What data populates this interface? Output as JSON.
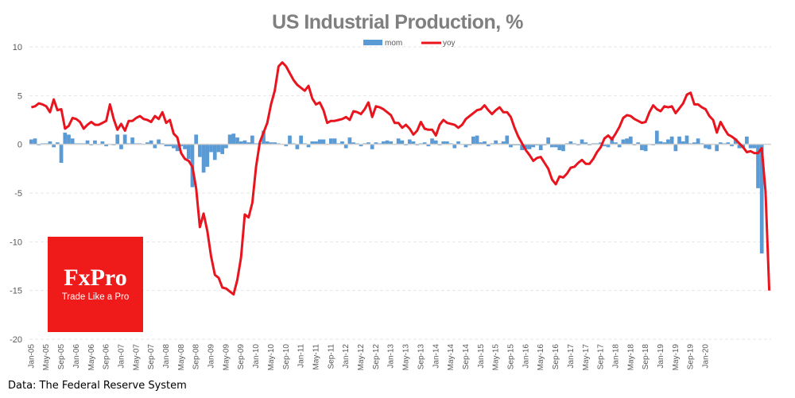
{
  "source_note": "Data: The Federal Reserve System",
  "logo": {
    "brand": "FxPro",
    "tagline": "Trade Like a Pro",
    "color": "#ef1a1a"
  },
  "colors": {
    "mom": "#5b9bd5",
    "yoy": "#e8141e",
    "grid": "#e6e6e6",
    "zero": "#d0d0d0",
    "axis_text": "#595959",
    "title": "#7f7f7f"
  },
  "chart_data": {
    "type": "bar+line",
    "title": "US Industrial Production, %",
    "xlabel": "",
    "ylabel": "",
    "ylim": [
      -20,
      10
    ],
    "yticks": [
      10,
      5,
      0,
      -5,
      -10,
      -15,
      -20
    ],
    "grid": true,
    "legend": {
      "position": "top-center",
      "entries": [
        "mom",
        "yoy"
      ]
    },
    "x_start": "Jan-05",
    "x_end": "Apr-20",
    "xtick_labels": [
      "Jan-05",
      "May-05",
      "Sep-05",
      "Jan-06",
      "May-06",
      "Sep-06",
      "Jan-07",
      "May-07",
      "Sep-07",
      "Jan-08",
      "May-08",
      "Sep-08",
      "Jan-09",
      "May-09",
      "Sep-09",
      "Jan-10",
      "May-10",
      "Sep-10",
      "Jan-11",
      "May-11",
      "Sep-11",
      "Jan-12",
      "May-12",
      "Sep-12",
      "Jan-13",
      "May-13",
      "Sep-13",
      "Jan-14",
      "May-14",
      "Sep-14",
      "Jan-15",
      "May-15",
      "Sep-15",
      "Jan-16",
      "May-16",
      "Sep-16",
      "Jan-17",
      "May-17",
      "Sep-17",
      "Jan-18",
      "May-18",
      "Sep-18",
      "Jan-19",
      "May-19",
      "Sep-19",
      "Jan-20"
    ],
    "series": [
      {
        "name": "mom",
        "type": "bar",
        "values": [
          0.5,
          0.6,
          -0.1,
          0.1,
          0.1,
          0.3,
          -0.3,
          0.2,
          -1.9,
          1.2,
          1.0,
          0.6,
          0.1,
          0.1,
          0.1,
          0.4,
          -0.1,
          0.4,
          0.0,
          0.3,
          -0.2,
          0.0,
          -0.1,
          1.0,
          -0.5,
          1.0,
          0.1,
          0.7,
          0.1,
          0.1,
          0.0,
          0.2,
          0.4,
          -0.4,
          0.5,
          0.1,
          -0.2,
          -0.2,
          -0.4,
          -0.7,
          -0.2,
          -0.5,
          -1.5,
          -4.4,
          1.0,
          -1.3,
          -2.9,
          -2.3,
          -0.8,
          -1.6,
          -0.8,
          -1.0,
          -0.4,
          1.0,
          1.1,
          0.7,
          0.3,
          0.4,
          0.2,
          0.9,
          0.1,
          0.1,
          1.4,
          0.3,
          0.2,
          0.2,
          0.1,
          0.0,
          -0.2,
          0.9,
          0.1,
          -0.5,
          0.9,
          0.1,
          -0.3,
          0.3,
          0.3,
          0.5,
          0.5,
          0.0,
          0.6,
          0.6,
          0.1,
          0.3,
          -0.4,
          0.7,
          0.2,
          0.1,
          -0.2,
          0.1,
          0.2,
          -0.5,
          0.2,
          0.1,
          0.3,
          0.4,
          0.3,
          0.0,
          0.6,
          0.4,
          -0.1,
          0.5,
          0.3,
          -0.1,
          0.1,
          0.2,
          -0.2,
          0.6,
          0.4,
          -0.1,
          0.3,
          0.3,
          0.1,
          -0.4,
          0.3,
          0.0,
          -0.3,
          -0.1,
          0.8,
          0.9,
          0.2,
          0.3,
          -0.2,
          0.1,
          0.4,
          0.1,
          0.3,
          0.9,
          -0.3,
          -0.1,
          -0.1,
          -0.6,
          -0.5,
          -0.5,
          -0.3,
          -0.1,
          -0.6,
          -0.1,
          0.7,
          -0.3,
          -0.3,
          -0.6,
          -0.7,
          0.1,
          0.3,
          0.1,
          -0.1,
          0.5,
          0.2,
          -0.1,
          0.1,
          0.1,
          0.2,
          -0.2,
          -0.3,
          0.8,
          0.2,
          -0.3,
          0.5,
          0.6,
          0.8,
          -0.1,
          0.2,
          -0.6,
          -0.7,
          0.0,
          -0.1,
          1.4,
          0.3,
          0.2,
          0.5,
          0.8,
          -0.7,
          0.8,
          0.3,
          0.9,
          0.1,
          0.2,
          0.6,
          0.1,
          -0.4,
          -0.5,
          0.0,
          -0.7,
          0.2,
          0.1,
          0.2,
          -0.2,
          0.6,
          -0.4,
          -0.4,
          0.8,
          -0.4,
          -0.4,
          -4.5,
          -11.2
        ]
      },
      {
        "name": "yoy",
        "type": "line",
        "values": [
          3.8,
          3.9,
          4.2,
          4.1,
          3.9,
          3.3,
          4.6,
          3.5,
          3.6,
          1.6,
          1.9,
          2.7,
          2.6,
          2.3,
          1.6,
          2.0,
          2.3,
          2.0,
          2.0,
          2.2,
          2.4,
          4.1,
          2.6,
          1.5,
          2.1,
          1.4,
          2.4,
          2.4,
          2.7,
          2.9,
          2.6,
          2.5,
          2.3,
          2.9,
          2.6,
          3.3,
          2.2,
          2.5,
          1.1,
          0.7,
          -0.9,
          -1.5,
          -1.7,
          -2.3,
          -4.5,
          -8.5,
          -7.1,
          -8.9,
          -11.5,
          -13.4,
          -13.7,
          -14.7,
          -14.8,
          -15.1,
          -15.4,
          -13.9,
          -11.6,
          -7.2,
          -7.5,
          -6.0,
          -2.3,
          0.2,
          1.2,
          2.2,
          4.1,
          5.5,
          8.0,
          8.4,
          8.0,
          7.3,
          6.6,
          6.1,
          5.8,
          5.5,
          6.0,
          4.7,
          4.1,
          4.3,
          3.5,
          2.2,
          2.4,
          2.4,
          2.5,
          2.6,
          2.8,
          2.5,
          3.4,
          3.3,
          3.1,
          3.6,
          4.3,
          2.8,
          3.9,
          3.8,
          3.6,
          3.3,
          3.0,
          2.2,
          2.2,
          1.7,
          2.0,
          1.6,
          1.0,
          1.4,
          2.3,
          1.6,
          1.5,
          1.5,
          0.9,
          2.0,
          2.5,
          2.2,
          2.1,
          2.0,
          1.7,
          2.0,
          2.6,
          2.9,
          3.2,
          3.5,
          3.6,
          4.0,
          3.5,
          3.1,
          3.5,
          3.8,
          3.3,
          3.3,
          2.8,
          1.7,
          0.8,
          0.1,
          -0.6,
          -1.1,
          -1.7,
          -1.4,
          -1.3,
          -1.9,
          -2.5,
          -3.6,
          -4.1,
          -3.3,
          -3.4,
          -3.0,
          -2.4,
          -2.3,
          -1.9,
          -1.6,
          -2.0,
          -2.0,
          -1.5,
          -0.8,
          -0.3,
          0.6,
          0.9,
          0.5,
          1.1,
          1.8,
          2.7,
          3.0,
          2.9,
          2.6,
          2.4,
          2.2,
          2.3,
          3.3,
          4.0,
          3.6,
          3.4,
          3.9,
          3.8,
          3.9,
          3.2,
          3.7,
          4.2,
          5.1,
          5.3,
          4.1,
          4.1,
          3.8,
          3.6,
          2.9,
          2.5,
          1.2,
          2.3,
          1.6,
          1.0,
          0.8,
          0.5,
          0.1,
          -0.3,
          -0.8,
          -0.7,
          -0.9,
          -0.9,
          -0.4,
          -4.8,
          -15.0
        ]
      }
    ]
  }
}
